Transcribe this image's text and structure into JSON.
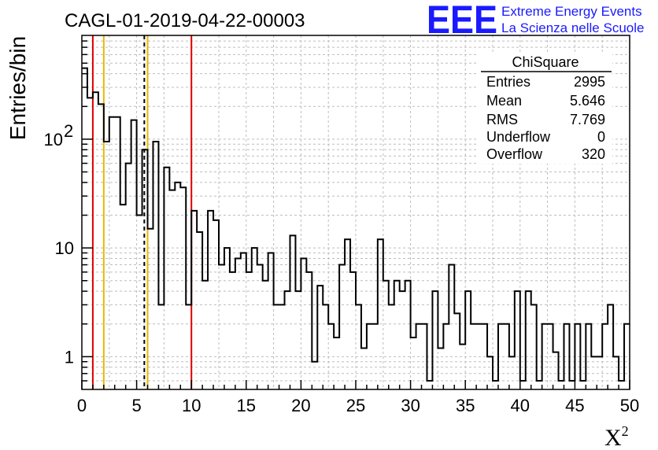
{
  "chart_data": {
    "type": "histogram",
    "title": "CAGL-01-2019-04-22-00003",
    "xlabel": "X",
    "xlabel_superscript": "2",
    "ylabel": "Entries/bin",
    "xlim": [
      0,
      50
    ],
    "ylim": [
      0.5,
      900
    ],
    "yscale": "log",
    "grid": true,
    "bin_width": 0.5,
    "x_ticks": [
      "0",
      "5",
      "10",
      "15",
      "20",
      "25",
      "30",
      "35",
      "40",
      "45",
      "50"
    ],
    "y_ticks": [
      {
        "value": 1,
        "label": "1"
      },
      {
        "value": 10,
        "label": "10"
      },
      {
        "value": 100,
        "label": "10",
        "exponent": "2"
      }
    ],
    "bin_contents": [
      450,
      240,
      270,
      210,
      95,
      160,
      160,
      25,
      60,
      150,
      20,
      80,
      15,
      95,
      3,
      55,
      34,
      40,
      36,
      3,
      22,
      14,
      5,
      22,
      18,
      7,
      10,
      6,
      8,
      9,
      6,
      10,
      7,
      5,
      9,
      3,
      3,
      4,
      13,
      4,
      8,
      6,
      0.9,
      4.5,
      3,
      2,
      1.5,
      7,
      12,
      6,
      3,
      1.2,
      2,
      2,
      12,
      5,
      3,
      5,
      4,
      5,
      1.5,
      2,
      2,
      0.6,
      4,
      1.2,
      2,
      7,
      2.5,
      1.3,
      4,
      2,
      2,
      2,
      1,
      0.6,
      2,
      2,
      1,
      4,
      0.6,
      4,
      3,
      0.6,
      2,
      2,
      1.1,
      0.6,
      2,
      0.6,
      2,
      0.6,
      2,
      1,
      1,
      2,
      3,
      1,
      0.6,
      2
    ],
    "vertical_lines": [
      {
        "x": 1.0,
        "color": "#e00000",
        "style": "solid"
      },
      {
        "x": 2.0,
        "color": "#e8b800",
        "style": "solid"
      },
      {
        "x": 5.7,
        "color": "#000000",
        "style": "dashed"
      },
      {
        "x": 6.0,
        "color": "#e8b800",
        "style": "solid"
      },
      {
        "x": 10.0,
        "color": "#e00000",
        "style": "solid"
      }
    ]
  },
  "logo": {
    "mark": "EEE",
    "line1": "Extreme Energy Events",
    "line2": "La Scienza nelle Scuole",
    "color": "#1a1aff"
  },
  "stats_box": {
    "title": "ChiSquare",
    "rows": [
      {
        "label": "Entries",
        "value": "2995"
      },
      {
        "label": "Mean",
        "value": "5.646"
      },
      {
        "label": "RMS",
        "value": "7.769"
      },
      {
        "label": "Underflow",
        "value": "0"
      },
      {
        "label": "Overflow",
        "value": "320"
      }
    ]
  }
}
